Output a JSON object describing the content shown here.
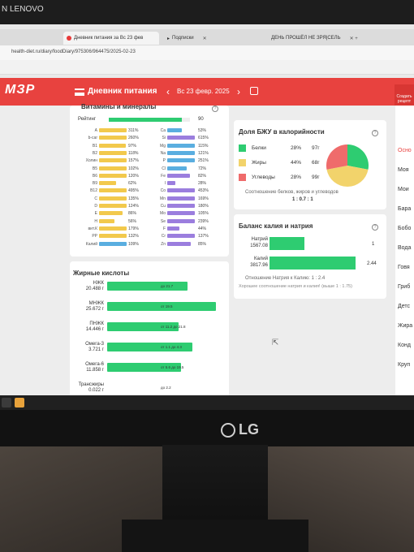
{
  "os": {
    "brand": "N LENOVO"
  },
  "tabs": [
    {
      "label": "Дневник питания за Вс 23 фев",
      "active": true
    },
    {
      "label": "Подписки",
      "active": false
    },
    {
      "label": "ДЕНЬ ПРОШЁЛ НЕ ЗРЯ|СЕЛЬ",
      "active": false
    }
  ],
  "url": "health-diet.ru/diary/foodDiary/975306/964475/2025-02-23",
  "header": {
    "logo": "МЗР",
    "title": "Дневник питания",
    "prev": "‹",
    "date": "Вс 23 февр. 2025",
    "next": "›",
    "create_btn": "Создать рецепт"
  },
  "vitamins": {
    "title": "Витамины и минералы",
    "rating_label": "Рейтинг",
    "rating_value": "90",
    "rating_fill": 0.9,
    "items": [
      {
        "name": "A",
        "pct": "311%",
        "fill": 1.0,
        "color": "#f2c94c"
      },
      {
        "name": "b-car",
        "pct": "260%",
        "fill": 1.0,
        "color": "#f2c94c"
      },
      {
        "name": "B1",
        "pct": "97%",
        "fill": 0.97,
        "color": "#f2c94c"
      },
      {
        "name": "B2",
        "pct": "118%",
        "fill": 1.0,
        "color": "#f2c94c"
      },
      {
        "name": "Холин",
        "pct": "157%",
        "fill": 1.0,
        "color": "#f2c94c"
      },
      {
        "name": "B5",
        "pct": "102%",
        "fill": 1.0,
        "color": "#f2c94c"
      },
      {
        "name": "B6",
        "pct": "120%",
        "fill": 1.0,
        "color": "#f2c94c"
      },
      {
        "name": "B9",
        "pct": "62%",
        "fill": 0.62,
        "color": "#f2c94c"
      },
      {
        "name": "B12",
        "pct": "495%",
        "fill": 1.0,
        "color": "#f2c94c"
      },
      {
        "name": "C",
        "pct": "135%",
        "fill": 1.0,
        "color": "#f2c94c"
      },
      {
        "name": "D",
        "pct": "124%",
        "fill": 1.0,
        "color": "#f2c94c"
      },
      {
        "name": "E",
        "pct": "86%",
        "fill": 0.86,
        "color": "#f2c94c"
      },
      {
        "name": "H",
        "pct": "56%",
        "fill": 0.56,
        "color": "#f2c94c"
      },
      {
        "name": "вит.К",
        "pct": "179%",
        "fill": 1.0,
        "color": "#f2c94c"
      },
      {
        "name": "PP",
        "pct": "132%",
        "fill": 1.0,
        "color": "#f2c94c"
      },
      {
        "name": "Калий",
        "pct": "109%",
        "fill": 1.0,
        "color": "#5aaee0"
      }
    ]
  },
  "minerals": {
    "items": [
      {
        "name": "Ca",
        "pct": "53%",
        "fill": 0.53,
        "color": "#5aaee0"
      },
      {
        "name": "Si",
        "pct": "615%",
        "fill": 1.0,
        "color": "#9b7ede"
      },
      {
        "name": "Mg",
        "pct": "115%",
        "fill": 1.0,
        "color": "#5aaee0"
      },
      {
        "name": "Na",
        "pct": "121%",
        "fill": 1.0,
        "color": "#5aaee0"
      },
      {
        "name": "P",
        "pct": "251%",
        "fill": 1.0,
        "color": "#5aaee0"
      },
      {
        "name": "Cl",
        "pct": "72%",
        "fill": 0.72,
        "color": "#5aaee0"
      },
      {
        "name": "Fe",
        "pct": "82%",
        "fill": 0.82,
        "color": "#9b7ede"
      },
      {
        "name": "I",
        "pct": "28%",
        "fill": 0.28,
        "color": "#9b7ede"
      },
      {
        "name": "Co",
        "pct": "453%",
        "fill": 1.0,
        "color": "#9b7ede"
      },
      {
        "name": "Mn",
        "pct": "169%",
        "fill": 1.0,
        "color": "#9b7ede"
      },
      {
        "name": "Cu",
        "pct": "180%",
        "fill": 1.0,
        "color": "#9b7ede"
      },
      {
        "name": "Mo",
        "pct": "105%",
        "fill": 1.0,
        "color": "#9b7ede"
      },
      {
        "name": "Se",
        "pct": "239%",
        "fill": 1.0,
        "color": "#9b7ede"
      },
      {
        "name": "F",
        "pct": "44%",
        "fill": 0.44,
        "color": "#9b7ede"
      },
      {
        "name": "Cr",
        "pct": "137%",
        "fill": 1.0,
        "color": "#9b7ede"
      },
      {
        "name": "Zn",
        "pct": "85%",
        "fill": 0.85,
        "color": "#9b7ede"
      }
    ]
  },
  "bju": {
    "title": "Доля БЖУ в калорийности",
    "rows": [
      {
        "name": "Белки",
        "pct": "28%",
        "grams": "97г",
        "color": "#2ecc71"
      },
      {
        "name": "Жиры",
        "pct": "44%",
        "grams": "68г",
        "color": "#f2d36b"
      },
      {
        "name": "Углеводы",
        "pct": "28%",
        "grams": "99г",
        "color": "#ef6b6b"
      }
    ],
    "ratio_text": "Соотношение белков, жиров и углеводов",
    "ratio_value": "1 : 0.7 : 1"
  },
  "chart_data": {
    "type": "pie",
    "categories": [
      "Белки",
      "Жиры",
      "Углеводы"
    ],
    "values": [
      28,
      44,
      28
    ],
    "colors": [
      "#2ecc71",
      "#f2d36b",
      "#ef6b6b"
    ]
  },
  "kna": {
    "title": "Баланс калия и натрия",
    "sodium_label": "Натрий",
    "sodium_value": "1567.08",
    "sodium_ratio": "1",
    "sodium_fill": 0.41,
    "potassium_label": "Калий",
    "potassium_value": "3817.96",
    "potassium_ratio": "2.44",
    "potassium_fill": 1.0,
    "ratio_text": "Отношение Натрия к Калию: 1 : 2.4",
    "good_text": "Хорошее соотношение натрия и калия! (выше 1 : 1.75)"
  },
  "fatty": {
    "title": "Жирные кислоты",
    "items": [
      {
        "name": "НЖК",
        "value": "20.488 г",
        "note": "до 21.7",
        "fill": 0.74
      },
      {
        "name": "МНЖК",
        "value": "25.672 г",
        "note": "от 19.5",
        "fill": 1.0
      },
      {
        "name": "ПНЖК",
        "value": "14.446 г",
        "note": "от 11.2 до 21.8",
        "fill": 0.66
      },
      {
        "name": "Омега-3",
        "value": "3.721 г",
        "note": "от 1.1 до 4.3",
        "fill": 0.78
      },
      {
        "name": "Омега-6",
        "value": "11.858 г",
        "note": "от 5.6 до 19.5",
        "fill": 0.68
      },
      {
        "name": "Трансжиры",
        "value": "0.022 г",
        "note": "до 2.2",
        "fill": 0.0
      }
    ]
  },
  "right_col": {
    "items": [
      "Осно",
      "Моя",
      "Мои",
      "Бара",
      "Бобо",
      "Вода",
      "Говя",
      "Гриб",
      "Детс",
      "Жира",
      "Конд",
      "Круп"
    ]
  }
}
